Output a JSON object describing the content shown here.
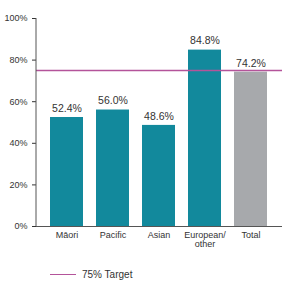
{
  "chart_data": {
    "type": "bar",
    "categories": [
      "Māori",
      "Pacific",
      "Asian",
      "European/other",
      "Total"
    ],
    "values": [
      52.4,
      56.0,
      48.6,
      84.8,
      74.2
    ],
    "value_labels": [
      "52.4%",
      "56.0%",
      "48.6%",
      "84.8%",
      "74.2%"
    ],
    "colors": [
      "#12899c",
      "#12899c",
      "#12899c",
      "#12899c",
      "#a7a9ac"
    ],
    "data_labels": true,
    "ylim": [
      0,
      100
    ],
    "yticks": [
      {
        "value": 0,
        "label": "0%"
      },
      {
        "value": 20,
        "label": "20%"
      },
      {
        "value": 40,
        "label": "40%"
      },
      {
        "value": 60,
        "label": "60%"
      },
      {
        "value": 80,
        "label": "80%"
      },
      {
        "value": 100,
        "label": "100%"
      }
    ],
    "target": {
      "value": 75,
      "label": "75% Target",
      "color": "#b4549a"
    }
  }
}
